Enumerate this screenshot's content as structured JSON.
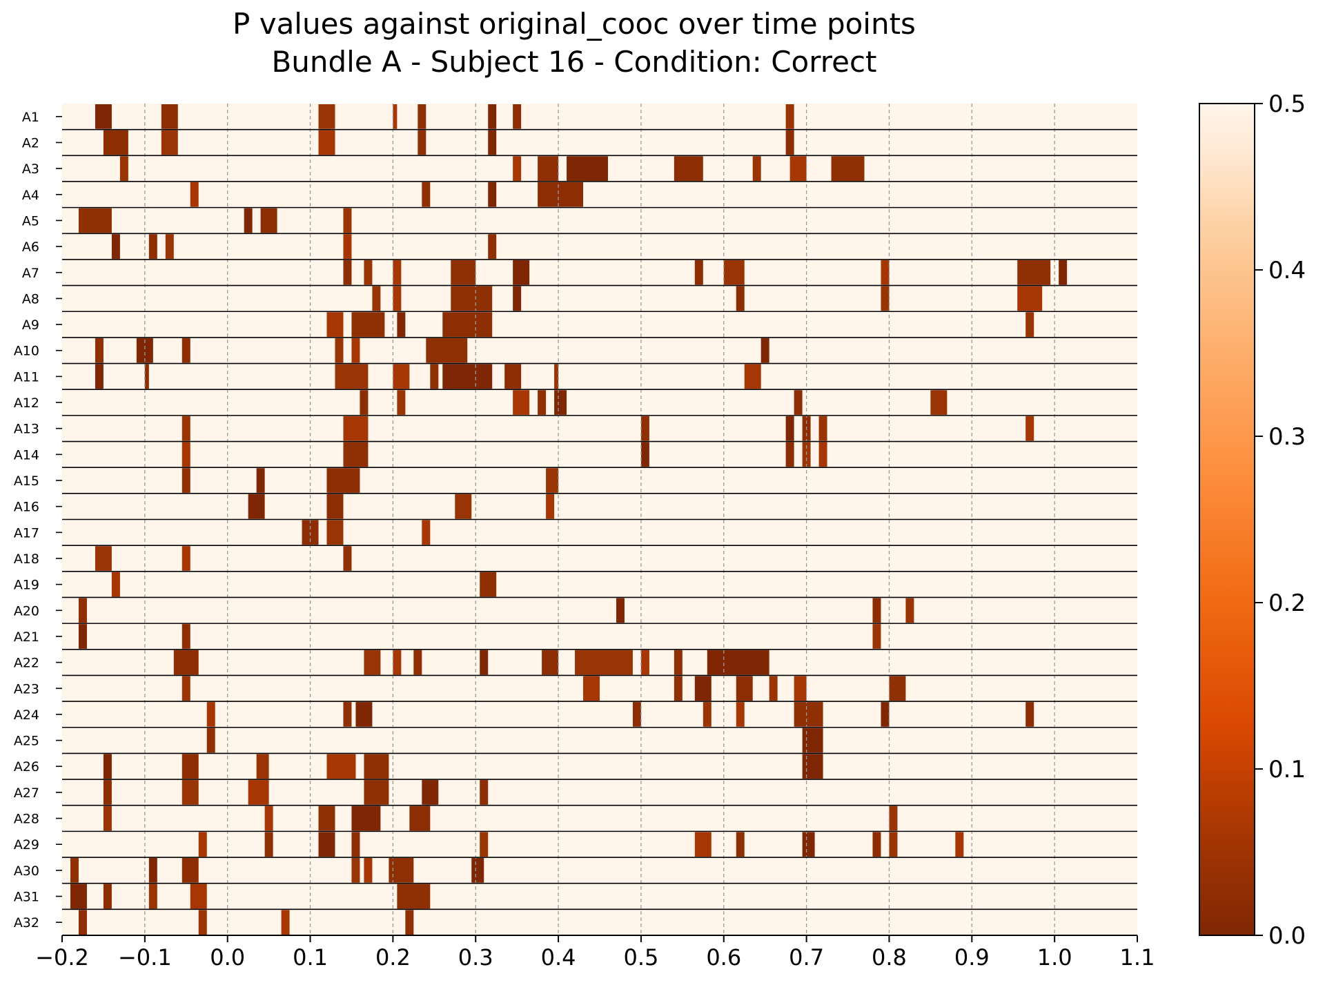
{
  "chart_data": {
    "type": "heatmap",
    "title": "P values against original_cooc over time points",
    "subtitle": "Bundle A - Subject 16 - Condition: Correct",
    "xlim": [
      -0.2,
      1.1
    ],
    "x_ticks": [
      "−0.2",
      "−0.1",
      "0.0",
      "0.1",
      "0.2",
      "0.3",
      "0.4",
      "0.5",
      "0.6",
      "0.7",
      "0.8",
      "0.9",
      "1.0",
      "1.1"
    ],
    "x_tick_values": [
      -0.2,
      -0.1,
      0.0,
      0.1,
      0.2,
      0.3,
      0.4,
      0.5,
      0.6,
      0.7,
      0.8,
      0.9,
      1.0,
      1.1
    ],
    "vertical_gridlines": [
      -0.1,
      0.0,
      0.1,
      0.2,
      0.3,
      0.4,
      0.5,
      0.6,
      0.7,
      0.8,
      0.9,
      1.0
    ],
    "grid_style": "dashed gray vertical lines",
    "colormap": "Oranges_r",
    "colors": {
      "low": "#7f2704",
      "mid": "#f16913",
      "high": "#fff5eb"
    },
    "colorbar": {
      "min": 0.0,
      "max": 0.5,
      "ticks": [
        "0.0",
        "0.1",
        "0.2",
        "0.3",
        "0.4",
        "0.5"
      ],
      "tick_values": [
        0.0,
        0.1,
        0.2,
        0.3,
        0.4,
        0.5
      ],
      "placement": "right"
    },
    "background_p": 0.5,
    "rows": [
      {
        "label": "A1",
        "segments": [
          [
            -0.16,
            -0.14
          ],
          [
            -0.08,
            -0.06
          ],
          [
            0.11,
            0.13
          ],
          [
            0.2,
            0.205
          ],
          [
            0.23,
            0.24
          ],
          [
            0.315,
            0.325
          ],
          [
            0.345,
            0.355
          ],
          [
            0.675,
            0.685
          ]
        ]
      },
      {
        "label": "A2",
        "segments": [
          [
            -0.15,
            -0.12
          ],
          [
            -0.08,
            -0.06
          ],
          [
            0.11,
            0.13
          ],
          [
            0.23,
            0.24
          ],
          [
            0.315,
            0.325
          ],
          [
            0.675,
            0.685
          ]
        ]
      },
      {
        "label": "A3",
        "segments": [
          [
            -0.13,
            -0.12
          ],
          [
            0.345,
            0.355
          ],
          [
            0.375,
            0.4
          ],
          [
            0.41,
            0.46
          ],
          [
            0.54,
            0.575
          ],
          [
            0.635,
            0.645
          ],
          [
            0.68,
            0.7
          ],
          [
            0.73,
            0.77
          ]
        ]
      },
      {
        "label": "A4",
        "segments": [
          [
            -0.045,
            -0.035
          ],
          [
            0.235,
            0.245
          ],
          [
            0.315,
            0.325
          ],
          [
            0.375,
            0.43
          ]
        ]
      },
      {
        "label": "A5",
        "segments": [
          [
            -0.18,
            -0.14
          ],
          [
            0.02,
            0.03
          ],
          [
            0.04,
            0.06
          ],
          [
            0.14,
            0.15
          ]
        ]
      },
      {
        "label": "A6",
        "segments": [
          [
            -0.14,
            -0.13
          ],
          [
            -0.095,
            -0.085
          ],
          [
            -0.075,
            -0.065
          ],
          [
            0.14,
            0.15
          ],
          [
            0.315,
            0.325
          ]
        ]
      },
      {
        "label": "A7",
        "segments": [
          [
            0.14,
            0.15
          ],
          [
            0.165,
            0.175
          ],
          [
            0.2,
            0.21
          ],
          [
            0.27,
            0.3
          ],
          [
            0.345,
            0.365
          ],
          [
            0.565,
            0.575
          ],
          [
            0.6,
            0.625
          ],
          [
            0.79,
            0.8
          ],
          [
            0.955,
            0.995
          ],
          [
            1.005,
            1.015
          ]
        ]
      },
      {
        "label": "A8",
        "segments": [
          [
            0.175,
            0.185
          ],
          [
            0.2,
            0.21
          ],
          [
            0.27,
            0.32
          ],
          [
            0.345,
            0.355
          ],
          [
            0.615,
            0.625
          ],
          [
            0.79,
            0.8
          ],
          [
            0.955,
            0.985
          ]
        ]
      },
      {
        "label": "A9",
        "segments": [
          [
            0.12,
            0.14
          ],
          [
            0.15,
            0.19
          ],
          [
            0.205,
            0.215
          ],
          [
            0.26,
            0.32
          ],
          [
            0.965,
            0.975
          ]
        ]
      },
      {
        "label": "A10",
        "segments": [
          [
            -0.16,
            -0.15
          ],
          [
            -0.11,
            -0.09
          ],
          [
            -0.055,
            -0.045
          ],
          [
            0.13,
            0.14
          ],
          [
            0.15,
            0.16
          ],
          [
            0.24,
            0.29
          ],
          [
            0.645,
            0.655
          ]
        ]
      },
      {
        "label": "A11",
        "segments": [
          [
            -0.16,
            -0.15
          ],
          [
            -0.1,
            -0.095
          ],
          [
            0.13,
            0.17
          ],
          [
            0.2,
            0.22
          ],
          [
            0.245,
            0.255
          ],
          [
            0.26,
            0.32
          ],
          [
            0.335,
            0.355
          ],
          [
            0.395,
            0.4
          ],
          [
            0.625,
            0.645
          ]
        ]
      },
      {
        "label": "A12",
        "segments": [
          [
            0.16,
            0.17
          ],
          [
            0.205,
            0.215
          ],
          [
            0.345,
            0.365
          ],
          [
            0.375,
            0.385
          ],
          [
            0.395,
            0.41
          ],
          [
            0.685,
            0.695
          ],
          [
            0.85,
            0.87
          ]
        ]
      },
      {
        "label": "A13",
        "segments": [
          [
            -0.055,
            -0.045
          ],
          [
            0.14,
            0.17
          ],
          [
            0.5,
            0.51
          ],
          [
            0.675,
            0.685
          ],
          [
            0.695,
            0.705
          ],
          [
            0.715,
            0.725
          ],
          [
            0.965,
            0.975
          ]
        ]
      },
      {
        "label": "A14",
        "segments": [
          [
            -0.055,
            -0.045
          ],
          [
            0.14,
            0.17
          ],
          [
            0.5,
            0.51
          ],
          [
            0.675,
            0.685
          ],
          [
            0.695,
            0.705
          ],
          [
            0.715,
            0.725
          ]
        ]
      },
      {
        "label": "A15",
        "segments": [
          [
            -0.055,
            -0.045
          ],
          [
            0.035,
            0.045
          ],
          [
            0.12,
            0.16
          ],
          [
            0.385,
            0.4
          ]
        ]
      },
      {
        "label": "A16",
        "segments": [
          [
            0.025,
            0.045
          ],
          [
            0.12,
            0.14
          ],
          [
            0.275,
            0.295
          ],
          [
            0.385,
            0.395
          ]
        ]
      },
      {
        "label": "A17",
        "segments": [
          [
            0.09,
            0.11
          ],
          [
            0.12,
            0.14
          ],
          [
            0.235,
            0.245
          ]
        ]
      },
      {
        "label": "A18",
        "segments": [
          [
            -0.16,
            -0.14
          ],
          [
            -0.055,
            -0.045
          ],
          [
            0.14,
            0.15
          ]
        ]
      },
      {
        "label": "A19",
        "segments": [
          [
            -0.14,
            -0.13
          ],
          [
            0.305,
            0.325
          ]
        ]
      },
      {
        "label": "A20",
        "segments": [
          [
            -0.18,
            -0.17
          ],
          [
            0.47,
            0.48
          ],
          [
            0.78,
            0.79
          ],
          [
            0.82,
            0.83
          ]
        ]
      },
      {
        "label": "A21",
        "segments": [
          [
            -0.18,
            -0.17
          ],
          [
            -0.055,
            -0.045
          ],
          [
            0.78,
            0.79
          ]
        ]
      },
      {
        "label": "A22",
        "segments": [
          [
            -0.065,
            -0.035
          ],
          [
            0.165,
            0.185
          ],
          [
            0.2,
            0.21
          ],
          [
            0.225,
            0.235
          ],
          [
            0.305,
            0.315
          ],
          [
            0.38,
            0.4
          ],
          [
            0.42,
            0.49
          ],
          [
            0.5,
            0.51
          ],
          [
            0.54,
            0.55
          ],
          [
            0.58,
            0.655
          ]
        ]
      },
      {
        "label": "A23",
        "segments": [
          [
            -0.055,
            -0.045
          ],
          [
            0.43,
            0.45
          ],
          [
            0.54,
            0.55
          ],
          [
            0.565,
            0.585
          ],
          [
            0.615,
            0.635
          ],
          [
            0.655,
            0.665
          ],
          [
            0.685,
            0.7
          ],
          [
            0.8,
            0.82
          ]
        ]
      },
      {
        "label": "A24",
        "segments": [
          [
            -0.025,
            -0.015
          ],
          [
            0.14,
            0.15
          ],
          [
            0.155,
            0.175
          ],
          [
            0.49,
            0.5
          ],
          [
            0.575,
            0.585
          ],
          [
            0.615,
            0.625
          ],
          [
            0.685,
            0.72
          ],
          [
            0.79,
            0.8
          ],
          [
            0.965,
            0.975
          ]
        ]
      },
      {
        "label": "A25",
        "segments": [
          [
            -0.025,
            -0.015
          ],
          [
            0.695,
            0.72
          ]
        ]
      },
      {
        "label": "A26",
        "segments": [
          [
            -0.15,
            -0.14
          ],
          [
            -0.055,
            -0.035
          ],
          [
            0.035,
            0.05
          ],
          [
            0.12,
            0.155
          ],
          [
            0.165,
            0.195
          ],
          [
            0.695,
            0.72
          ]
        ]
      },
      {
        "label": "A27",
        "segments": [
          [
            -0.15,
            -0.14
          ],
          [
            -0.055,
            -0.035
          ],
          [
            0.025,
            0.05
          ],
          [
            0.165,
            0.195
          ],
          [
            0.235,
            0.255
          ],
          [
            0.305,
            0.315
          ]
        ]
      },
      {
        "label": "A28",
        "segments": [
          [
            -0.15,
            -0.14
          ],
          [
            0.045,
            0.055
          ],
          [
            0.11,
            0.13
          ],
          [
            0.15,
            0.185
          ],
          [
            0.22,
            0.245
          ],
          [
            0.8,
            0.81
          ]
        ]
      },
      {
        "label": "A29",
        "segments": [
          [
            -0.035,
            -0.025
          ],
          [
            0.045,
            0.055
          ],
          [
            0.11,
            0.13
          ],
          [
            0.15,
            0.16
          ],
          [
            0.305,
            0.315
          ],
          [
            0.565,
            0.585
          ],
          [
            0.615,
            0.625
          ],
          [
            0.695,
            0.71
          ],
          [
            0.78,
            0.79
          ],
          [
            0.8,
            0.81
          ],
          [
            0.88,
            0.89
          ]
        ]
      },
      {
        "label": "A30",
        "segments": [
          [
            -0.19,
            -0.18
          ],
          [
            -0.095,
            -0.085
          ],
          [
            -0.055,
            -0.035
          ],
          [
            0.15,
            0.16
          ],
          [
            0.165,
            0.175
          ],
          [
            0.195,
            0.225
          ],
          [
            0.295,
            0.31
          ]
        ]
      },
      {
        "label": "A31",
        "segments": [
          [
            -0.19,
            -0.17
          ],
          [
            -0.15,
            -0.14
          ],
          [
            -0.095,
            -0.085
          ],
          [
            -0.045,
            -0.025
          ],
          [
            0.205,
            0.245
          ]
        ]
      },
      {
        "label": "A32",
        "segments": [
          [
            -0.18,
            -0.17
          ],
          [
            -0.035,
            -0.025
          ],
          [
            0.065,
            0.075
          ],
          [
            0.215,
            0.225
          ]
        ]
      }
    ]
  }
}
